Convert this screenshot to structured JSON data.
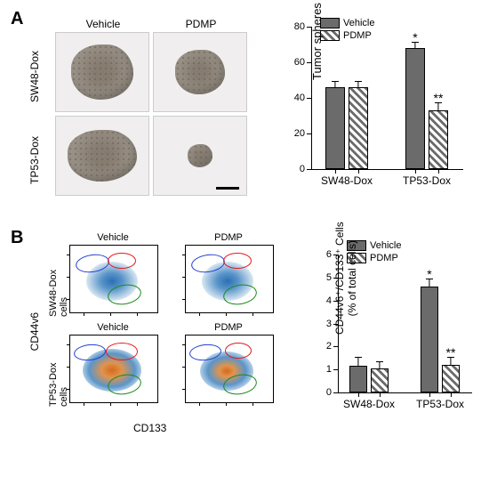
{
  "panelA": {
    "label": "A",
    "col_labels": [
      "Vehicle",
      "PDMP"
    ],
    "row_labels": [
      "SW48-Dox",
      "TP53-Dox"
    ],
    "blob_sizes": [
      [
        70,
        56
      ],
      [
        78,
        28
      ]
    ],
    "chart": {
      "type": "bar",
      "ylabel": "Tumor spheres",
      "ylim": [
        0,
        80
      ],
      "yticks": [
        0,
        20,
        40,
        60,
        80
      ],
      "groups": [
        "SW48-Dox",
        "TP53-Dox"
      ],
      "series": [
        {
          "name": "Vehicle",
          "style": "solid"
        },
        {
          "name": "PDMP",
          "style": "hatch"
        }
      ],
      "values": [
        [
          46,
          46
        ],
        [
          68,
          33
        ]
      ],
      "errors": [
        [
          3,
          3
        ],
        [
          3,
          4
        ]
      ],
      "annotations": [
        {
          "group": 1,
          "series": 0,
          "text": "*"
        },
        {
          "group": 1,
          "series": 1,
          "text": "**"
        }
      ],
      "colors": {
        "solid": "#6b6b6b"
      }
    }
  },
  "panelB": {
    "label": "B",
    "row_labels": [
      "SW48-Dox cells",
      "TP53-Dox cells"
    ],
    "col_labels": [
      "Vehicle",
      "PDMP"
    ],
    "xlabel": "CD133",
    "ylabel": "CD44v6",
    "gate_colors": {
      "blue": "#1f3fd4",
      "red": "#e41a1c",
      "green": "#1a8a1a"
    },
    "chart": {
      "type": "bar",
      "ylabel_top": "CD44v6⁺/CD133⁺ Cells",
      "ylabel_bot": "(% of total cells)",
      "ylim": [
        0,
        6
      ],
      "yticks": [
        0,
        1,
        2,
        3,
        4,
        5,
        6
      ],
      "groups": [
        "SW48-Dox",
        "TP53-Dox"
      ],
      "series": [
        {
          "name": "Vehicle",
          "style": "solid"
        },
        {
          "name": "PDMP",
          "style": "hatch"
        }
      ],
      "values": [
        [
          1.15,
          1.05
        ],
        [
          4.6,
          1.2
        ]
      ],
      "errors": [
        [
          0.35,
          0.25
        ],
        [
          0.3,
          0.3
        ]
      ],
      "annotations": [
        {
          "group": 1,
          "series": 0,
          "text": "*"
        },
        {
          "group": 1,
          "series": 1,
          "text": "**"
        }
      ]
    }
  }
}
